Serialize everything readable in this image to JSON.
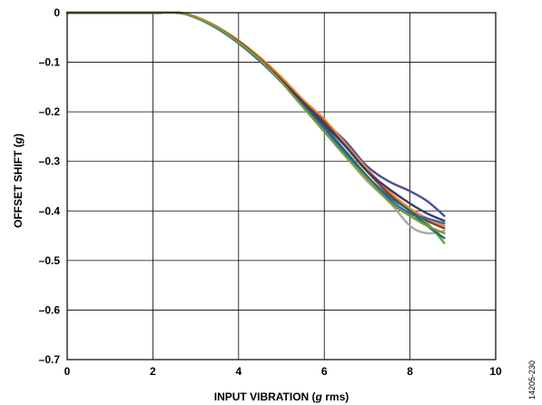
{
  "chart_data": {
    "type": "line",
    "title": "",
    "xlabel": {
      "prefix": "INPUT VIBRATION (",
      "italic": "g",
      "suffix": " rms)"
    },
    "ylabel": {
      "prefix": "OFFSET SHIFT (",
      "italic": "g",
      "suffix": ")"
    },
    "xlim": [
      0,
      10
    ],
    "ylim": [
      -0.7,
      0
    ],
    "x_ticks": [
      "0",
      "2",
      "4",
      "6",
      "8",
      "10"
    ],
    "y_ticks": [
      "0",
      "–0.1",
      "–0.2",
      "–0.3",
      "–0.4",
      "–0.5",
      "–0.6",
      "–0.7"
    ],
    "grid": true,
    "legend": "none",
    "figure_id": "14205-230",
    "series": [
      {
        "color": "#a9a9a9",
        "points": [
          [
            0,
            0
          ],
          [
            1,
            0
          ],
          [
            2,
            0
          ],
          [
            2.6,
            0
          ],
          [
            3,
            -0.01
          ],
          [
            3.5,
            -0.03
          ],
          [
            4,
            -0.06
          ],
          [
            4.5,
            -0.095
          ],
          [
            5,
            -0.14
          ],
          [
            5.5,
            -0.19
          ],
          [
            6,
            -0.24
          ],
          [
            6.5,
            -0.29
          ],
          [
            7,
            -0.34
          ],
          [
            7.5,
            -0.38
          ],
          [
            8,
            -0.43
          ],
          [
            8.4,
            -0.445
          ],
          [
            8.8,
            -0.44
          ]
        ]
      },
      {
        "color": "#4a4f9a",
        "points": [
          [
            0,
            0
          ],
          [
            1,
            0
          ],
          [
            2,
            0
          ],
          [
            2.6,
            0
          ],
          [
            3,
            -0.01
          ],
          [
            3.5,
            -0.03
          ],
          [
            4,
            -0.06
          ],
          [
            4.5,
            -0.095
          ],
          [
            5,
            -0.14
          ],
          [
            5.5,
            -0.18
          ],
          [
            6,
            -0.22
          ],
          [
            6.5,
            -0.26
          ],
          [
            7,
            -0.31
          ],
          [
            7.5,
            -0.34
          ],
          [
            8,
            -0.36
          ],
          [
            8.4,
            -0.38
          ],
          [
            8.8,
            -0.41
          ]
        ]
      },
      {
        "color": "#f28c28",
        "points": [
          [
            0,
            0
          ],
          [
            1,
            0
          ],
          [
            2,
            0
          ],
          [
            2.6,
            0
          ],
          [
            3,
            -0.008
          ],
          [
            3.5,
            -0.028
          ],
          [
            4,
            -0.056
          ],
          [
            4.5,
            -0.09
          ],
          [
            5,
            -0.13
          ],
          [
            5.5,
            -0.175
          ],
          [
            6,
            -0.215
          ],
          [
            6.5,
            -0.265
          ],
          [
            7,
            -0.315
          ],
          [
            7.5,
            -0.36
          ],
          [
            8,
            -0.395
          ],
          [
            8.4,
            -0.415
          ],
          [
            8.8,
            -0.43
          ]
        ]
      },
      {
        "color": "#8b3a3a",
        "points": [
          [
            0,
            0
          ],
          [
            1,
            0
          ],
          [
            2,
            0
          ],
          [
            2.6,
            0
          ],
          [
            3,
            -0.01
          ],
          [
            3.5,
            -0.03
          ],
          [
            4,
            -0.058
          ],
          [
            4.5,
            -0.093
          ],
          [
            5,
            -0.135
          ],
          [
            5.5,
            -0.18
          ],
          [
            6,
            -0.22
          ],
          [
            6.5,
            -0.27
          ],
          [
            7,
            -0.32
          ],
          [
            7.5,
            -0.365
          ],
          [
            8,
            -0.4
          ],
          [
            8.4,
            -0.42
          ],
          [
            8.8,
            -0.435
          ]
        ]
      },
      {
        "color": "#5aaa3a",
        "points": [
          [
            0,
            0
          ],
          [
            1,
            0
          ],
          [
            2,
            0
          ],
          [
            2.6,
            0
          ],
          [
            3,
            -0.01
          ],
          [
            3.5,
            -0.03
          ],
          [
            4,
            -0.06
          ],
          [
            4.5,
            -0.097
          ],
          [
            5,
            -0.14
          ],
          [
            5.5,
            -0.185
          ],
          [
            6,
            -0.235
          ],
          [
            6.5,
            -0.28
          ],
          [
            7,
            -0.33
          ],
          [
            7.5,
            -0.38
          ],
          [
            8,
            -0.41
          ],
          [
            8.4,
            -0.425
          ],
          [
            8.8,
            -0.465
          ]
        ]
      },
      {
        "color": "#2f6bb5",
        "points": [
          [
            0,
            0
          ],
          [
            1,
            0
          ],
          [
            2,
            0
          ],
          [
            2.6,
            0
          ],
          [
            3,
            -0.01
          ],
          [
            3.5,
            -0.032
          ],
          [
            4,
            -0.062
          ],
          [
            4.5,
            -0.098
          ],
          [
            5,
            -0.14
          ],
          [
            5.5,
            -0.185
          ],
          [
            6,
            -0.235
          ],
          [
            6.5,
            -0.285
          ],
          [
            7,
            -0.33
          ],
          [
            7.5,
            -0.375
          ],
          [
            8,
            -0.405
          ],
          [
            8.4,
            -0.415
          ],
          [
            8.8,
            -0.425
          ]
        ]
      },
      {
        "color": "#1f6f6f",
        "points": [
          [
            0,
            0
          ],
          [
            1,
            0
          ],
          [
            2,
            0
          ],
          [
            2.6,
            0
          ],
          [
            3,
            -0.01
          ],
          [
            3.5,
            -0.03
          ],
          [
            4,
            -0.06
          ],
          [
            4.5,
            -0.096
          ],
          [
            5,
            -0.14
          ],
          [
            5.5,
            -0.185
          ],
          [
            6,
            -0.23
          ],
          [
            6.5,
            -0.28
          ],
          [
            7,
            -0.33
          ],
          [
            7.5,
            -0.37
          ],
          [
            8,
            -0.4
          ],
          [
            8.4,
            -0.43
          ],
          [
            8.8,
            -0.455
          ]
        ]
      },
      {
        "color": "#3b3b6e",
        "points": [
          [
            0,
            0
          ],
          [
            1,
            0
          ],
          [
            2,
            0
          ],
          [
            2.6,
            0
          ],
          [
            3,
            -0.01
          ],
          [
            3.5,
            -0.03
          ],
          [
            4,
            -0.06
          ],
          [
            4.5,
            -0.095
          ],
          [
            5,
            -0.138
          ],
          [
            5.5,
            -0.18
          ],
          [
            6,
            -0.225
          ],
          [
            6.5,
            -0.27
          ],
          [
            7,
            -0.32
          ],
          [
            7.5,
            -0.355
          ],
          [
            8,
            -0.385
          ],
          [
            8.4,
            -0.405
          ],
          [
            8.8,
            -0.42
          ]
        ]
      },
      {
        "color": "#7a9a3a",
        "points": [
          [
            0,
            0
          ],
          [
            1,
            0
          ],
          [
            2,
            0
          ],
          [
            2.6,
            0
          ],
          [
            3,
            -0.01
          ],
          [
            3.5,
            -0.03
          ],
          [
            4,
            -0.06
          ],
          [
            4.5,
            -0.095
          ],
          [
            5,
            -0.14
          ],
          [
            5.5,
            -0.19
          ],
          [
            6,
            -0.24
          ],
          [
            6.5,
            -0.29
          ],
          [
            7,
            -0.335
          ],
          [
            7.5,
            -0.38
          ],
          [
            8,
            -0.41
          ],
          [
            8.4,
            -0.43
          ],
          [
            8.8,
            -0.445
          ]
        ]
      }
    ]
  }
}
